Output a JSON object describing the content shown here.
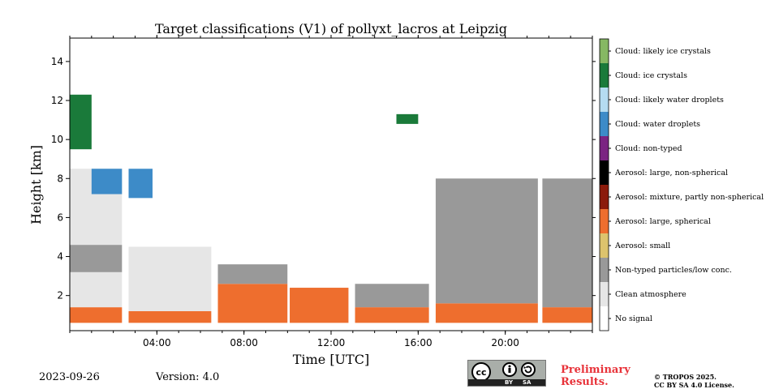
{
  "chart_data": {
    "type": "heatmap",
    "title": "Target classifications (V1) of pollyxt_lacros at Leipzig",
    "xlabel": "Time [UTC]",
    "ylabel": "Height [km]",
    "xlim_hours": [
      0,
      24
    ],
    "ylim_km": [
      0.2,
      15.2
    ],
    "x_ticks": [
      {
        "value": 4,
        "label": "04:00"
      },
      {
        "value": 8,
        "label": "08:00"
      },
      {
        "value": 12,
        "label": "12:00"
      },
      {
        "value": 16,
        "label": "16:00"
      },
      {
        "value": 20,
        "label": "20:00"
      }
    ],
    "y_ticks": [
      {
        "value": 2,
        "label": "2"
      },
      {
        "value": 4,
        "label": "4"
      },
      {
        "value": 6,
        "label": "6"
      },
      {
        "value": 8,
        "label": "8"
      },
      {
        "value": 10,
        "label": "10"
      },
      {
        "value": 12,
        "label": "12"
      },
      {
        "value": 14,
        "label": "14"
      }
    ],
    "classes": [
      {
        "label": "No signal",
        "color": "#ffffff"
      },
      {
        "label": "Clean atmosphere",
        "color": "#e6e6e6"
      },
      {
        "label": "Non-typed particles/low conc.",
        "color": "#999999"
      },
      {
        "label": "Aerosol: small",
        "color": "#ddc36d"
      },
      {
        "label": "Aerosol: large, spherical",
        "color": "#ee6e2e"
      },
      {
        "label": "Aerosol: mixture, partly non-spherical",
        "color": "#8b1a0b"
      },
      {
        "label": "Aerosol: large, non-spherical",
        "color": "#000000"
      },
      {
        "label": "Cloud: non-typed",
        "color": "#7b2482"
      },
      {
        "label": "Cloud: water droplets",
        "color": "#3d8bc8"
      },
      {
        "label": "Cloud: likely water droplets",
        "color": "#b5dcf1"
      },
      {
        "label": "Cloud: ice crystals",
        "color": "#1a7a3a"
      },
      {
        "label": "Cloud: likely ice crystals",
        "color": "#86b863"
      }
    ],
    "data_gaps_hours": [
      [
        2.4,
        2.7
      ],
      [
        6.5,
        6.8
      ],
      [
        10.0,
        10.1
      ],
      [
        12.8,
        13.1
      ],
      [
        16.5,
        16.8
      ],
      [
        21.5,
        21.7
      ]
    ],
    "regions": [
      {
        "t": [
          0,
          2.4
        ],
        "h": [
          0.6,
          1.4
        ],
        "class": "Aerosol: large, spherical"
      },
      {
        "t": [
          0,
          2.4
        ],
        "h": [
          1.4,
          3.2
        ],
        "class": "Clean atmosphere"
      },
      {
        "t": [
          0,
          2.4
        ],
        "h": [
          3.2,
          4.6
        ],
        "class": "Non-typed particles/low conc."
      },
      {
        "t": [
          0,
          2.4
        ],
        "h": [
          4.6,
          8.5
        ],
        "class": "Clean atmosphere"
      },
      {
        "t": [
          0,
          1.0
        ],
        "h": [
          9.5,
          12.3
        ],
        "class": "Cloud: ice crystals"
      },
      {
        "t": [
          1.0,
          2.4
        ],
        "h": [
          7.2,
          8.5
        ],
        "class": "Cloud: water droplets"
      },
      {
        "t": [
          2.7,
          6.5
        ],
        "h": [
          0.6,
          1.2
        ],
        "class": "Aerosol: large, spherical"
      },
      {
        "t": [
          2.7,
          6.5
        ],
        "h": [
          1.2,
          4.5
        ],
        "class": "Clean atmosphere"
      },
      {
        "t": [
          2.7,
          3.8
        ],
        "h": [
          7.0,
          8.5
        ],
        "class": "Cloud: water droplets"
      },
      {
        "t": [
          6.8,
          10.0
        ],
        "h": [
          0.6,
          2.6
        ],
        "class": "Aerosol: large, spherical"
      },
      {
        "t": [
          6.8,
          10.0
        ],
        "h": [
          2.6,
          3.6
        ],
        "class": "Non-typed particles/low conc."
      },
      {
        "t": [
          10.1,
          12.8
        ],
        "h": [
          0.6,
          2.4
        ],
        "class": "Aerosol: large, spherical"
      },
      {
        "t": [
          13.1,
          16.5
        ],
        "h": [
          0.6,
          1.4
        ],
        "class": "Aerosol: large, spherical"
      },
      {
        "t": [
          13.1,
          16.5
        ],
        "h": [
          1.4,
          2.6
        ],
        "class": "Non-typed particles/low conc."
      },
      {
        "t": [
          15.0,
          16.0
        ],
        "h": [
          10.8,
          11.3
        ],
        "class": "Cloud: ice crystals"
      },
      {
        "t": [
          16.8,
          21.5
        ],
        "h": [
          0.6,
          1.6
        ],
        "class": "Aerosol: large, spherical"
      },
      {
        "t": [
          16.8,
          21.5
        ],
        "h": [
          1.6,
          8.0
        ],
        "class": "Non-typed particles/low conc."
      },
      {
        "t": [
          21.7,
          24.0
        ],
        "h": [
          0.6,
          1.4
        ],
        "class": "Aerosol: large, spherical"
      },
      {
        "t": [
          21.7,
          24.0
        ],
        "h": [
          1.4,
          8.0
        ],
        "class": "Non-typed particles/low conc."
      }
    ]
  },
  "footer": {
    "date": "2023-09-26",
    "version": "Version: 4.0",
    "preliminary_line1": "Preliminary",
    "preliminary_line2": "Results.",
    "copyright_line1": "© TROPOS 2025.",
    "copyright_line2": "CC BY SA 4.0 License.",
    "license_by": "BY",
    "license_sa": "SA",
    "license_cc": "cc"
  }
}
